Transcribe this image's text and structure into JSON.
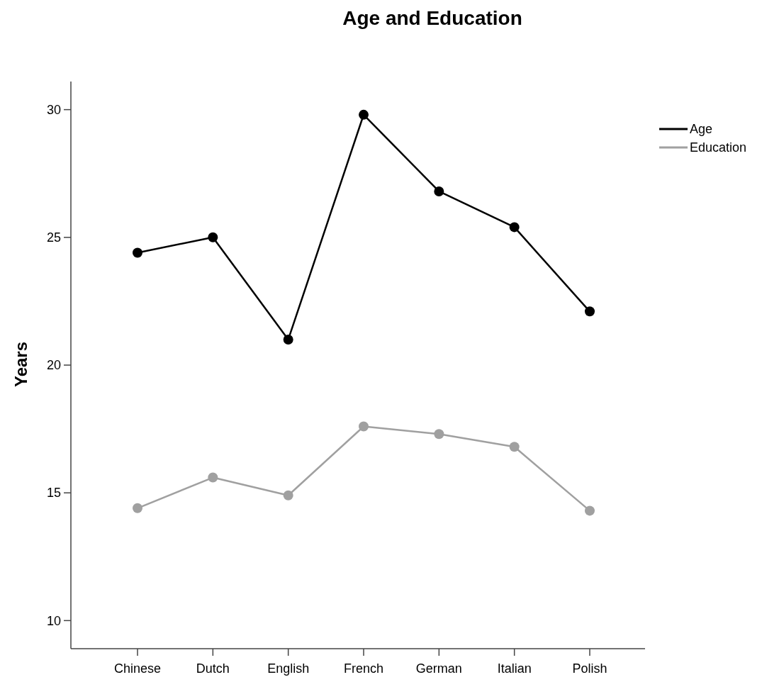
{
  "chart_data": {
    "type": "line",
    "title": "Age and Education",
    "ylabel": "Years",
    "categories": [
      "Chinese",
      "Dutch",
      "English",
      "French",
      "German",
      "Italian",
      "Polish"
    ],
    "series": [
      {
        "name": "Age",
        "color": "#000000",
        "values": [
          24.4,
          25.0,
          21.0,
          29.8,
          26.8,
          25.4,
          22.1
        ]
      },
      {
        "name": "Education",
        "color": "#a0a0a0",
        "values": [
          14.4,
          15.6,
          14.9,
          17.6,
          17.3,
          16.8,
          14.3
        ]
      }
    ],
    "ylim": [
      8.9,
      31.1
    ],
    "yticks": [
      10,
      15,
      20,
      25,
      30
    ],
    "grid": false,
    "legend": "top right",
    "marker": "circle",
    "line_style": "solid"
  }
}
